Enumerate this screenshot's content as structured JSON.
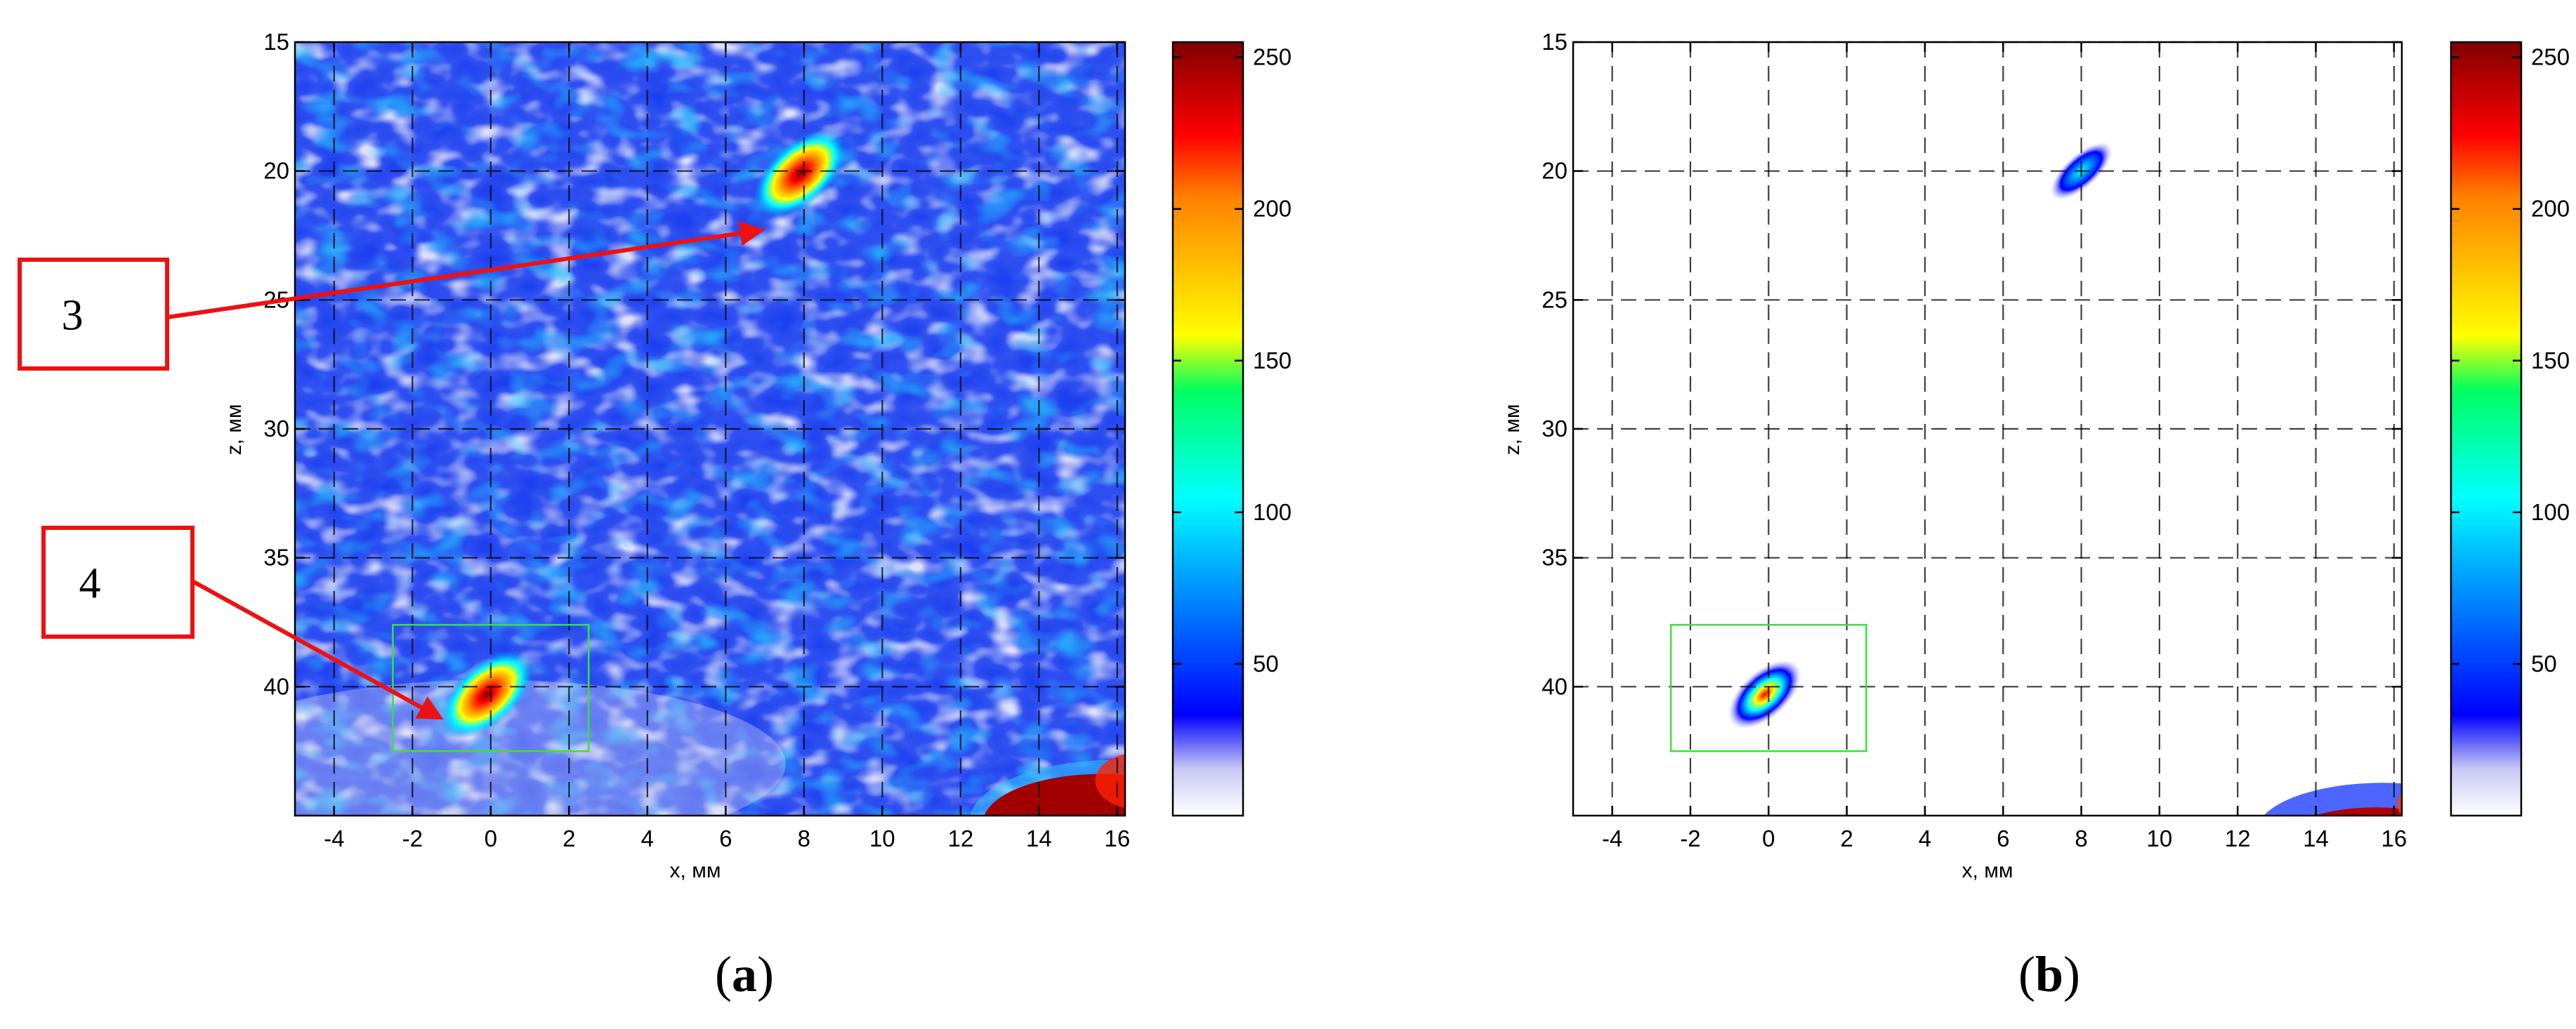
{
  "chart_data": [
    {
      "type": "heatmap",
      "panel_label_open": "(",
      "panel_label_letter": "a",
      "panel_label_close": ")",
      "xlabel": "x, мм",
      "ylabel": "z, мм",
      "xlim": [
        -5,
        16.2
      ],
      "ylim": [
        15,
        45
      ],
      "x_ticks": [
        -4,
        -2,
        0,
        2,
        4,
        6,
        8,
        10,
        12,
        14,
        16
      ],
      "y_ticks": [
        15,
        20,
        25,
        30,
        35,
        40
      ],
      "grid": true,
      "colormap": "jet",
      "colorbar": {
        "min": 0,
        "max": 255,
        "ticks": [
          50,
          100,
          150,
          200,
          250
        ]
      },
      "background_level": 55,
      "hotspots": [
        {
          "x": 7.9,
          "z": 20.1,
          "value": 255
        },
        {
          "x": -0.1,
          "z": 40.3,
          "value": 255
        },
        {
          "x": 14.9,
          "z": 44.2,
          "value": 255
        }
      ],
      "roi_box": {
        "x": [
          -2.5,
          2.5
        ],
        "z": [
          37.6,
          42.5
        ],
        "color": "#3ce03c"
      },
      "callouts": [
        {
          "label": "3",
          "target": {
            "x": 6.9,
            "z": 22.3
          }
        },
        {
          "label": "4",
          "target": {
            "x": -1.3,
            "z": 41.2
          }
        }
      ]
    },
    {
      "type": "heatmap",
      "panel_label_open": "(",
      "panel_label_letter": "b",
      "panel_label_close": ")",
      "xlabel": "x, мм",
      "ylabel": "z, мм",
      "xlim": [
        -5,
        16.2
      ],
      "ylim": [
        15,
        45
      ],
      "x_ticks": [
        -4,
        -2,
        0,
        2,
        4,
        6,
        8,
        10,
        12,
        14,
        16
      ],
      "y_ticks": [
        15,
        20,
        25,
        30,
        35,
        40
      ],
      "grid": true,
      "colormap": "jet",
      "colorbar": {
        "min": 0,
        "max": 255,
        "ticks": [
          50,
          100,
          150,
          200,
          250
        ]
      },
      "background_level": 0,
      "hotspots": [
        {
          "x": 8.0,
          "z": 20.0,
          "value": 70
        },
        {
          "x": -0.1,
          "z": 40.3,
          "value": 255
        },
        {
          "x": 15.0,
          "z": 44.0,
          "value": 220
        }
      ],
      "roi_box": {
        "x": [
          -2.5,
          2.5
        ],
        "z": [
          37.6,
          42.5
        ],
        "color": "#3ce03c"
      },
      "callouts": []
    }
  ]
}
